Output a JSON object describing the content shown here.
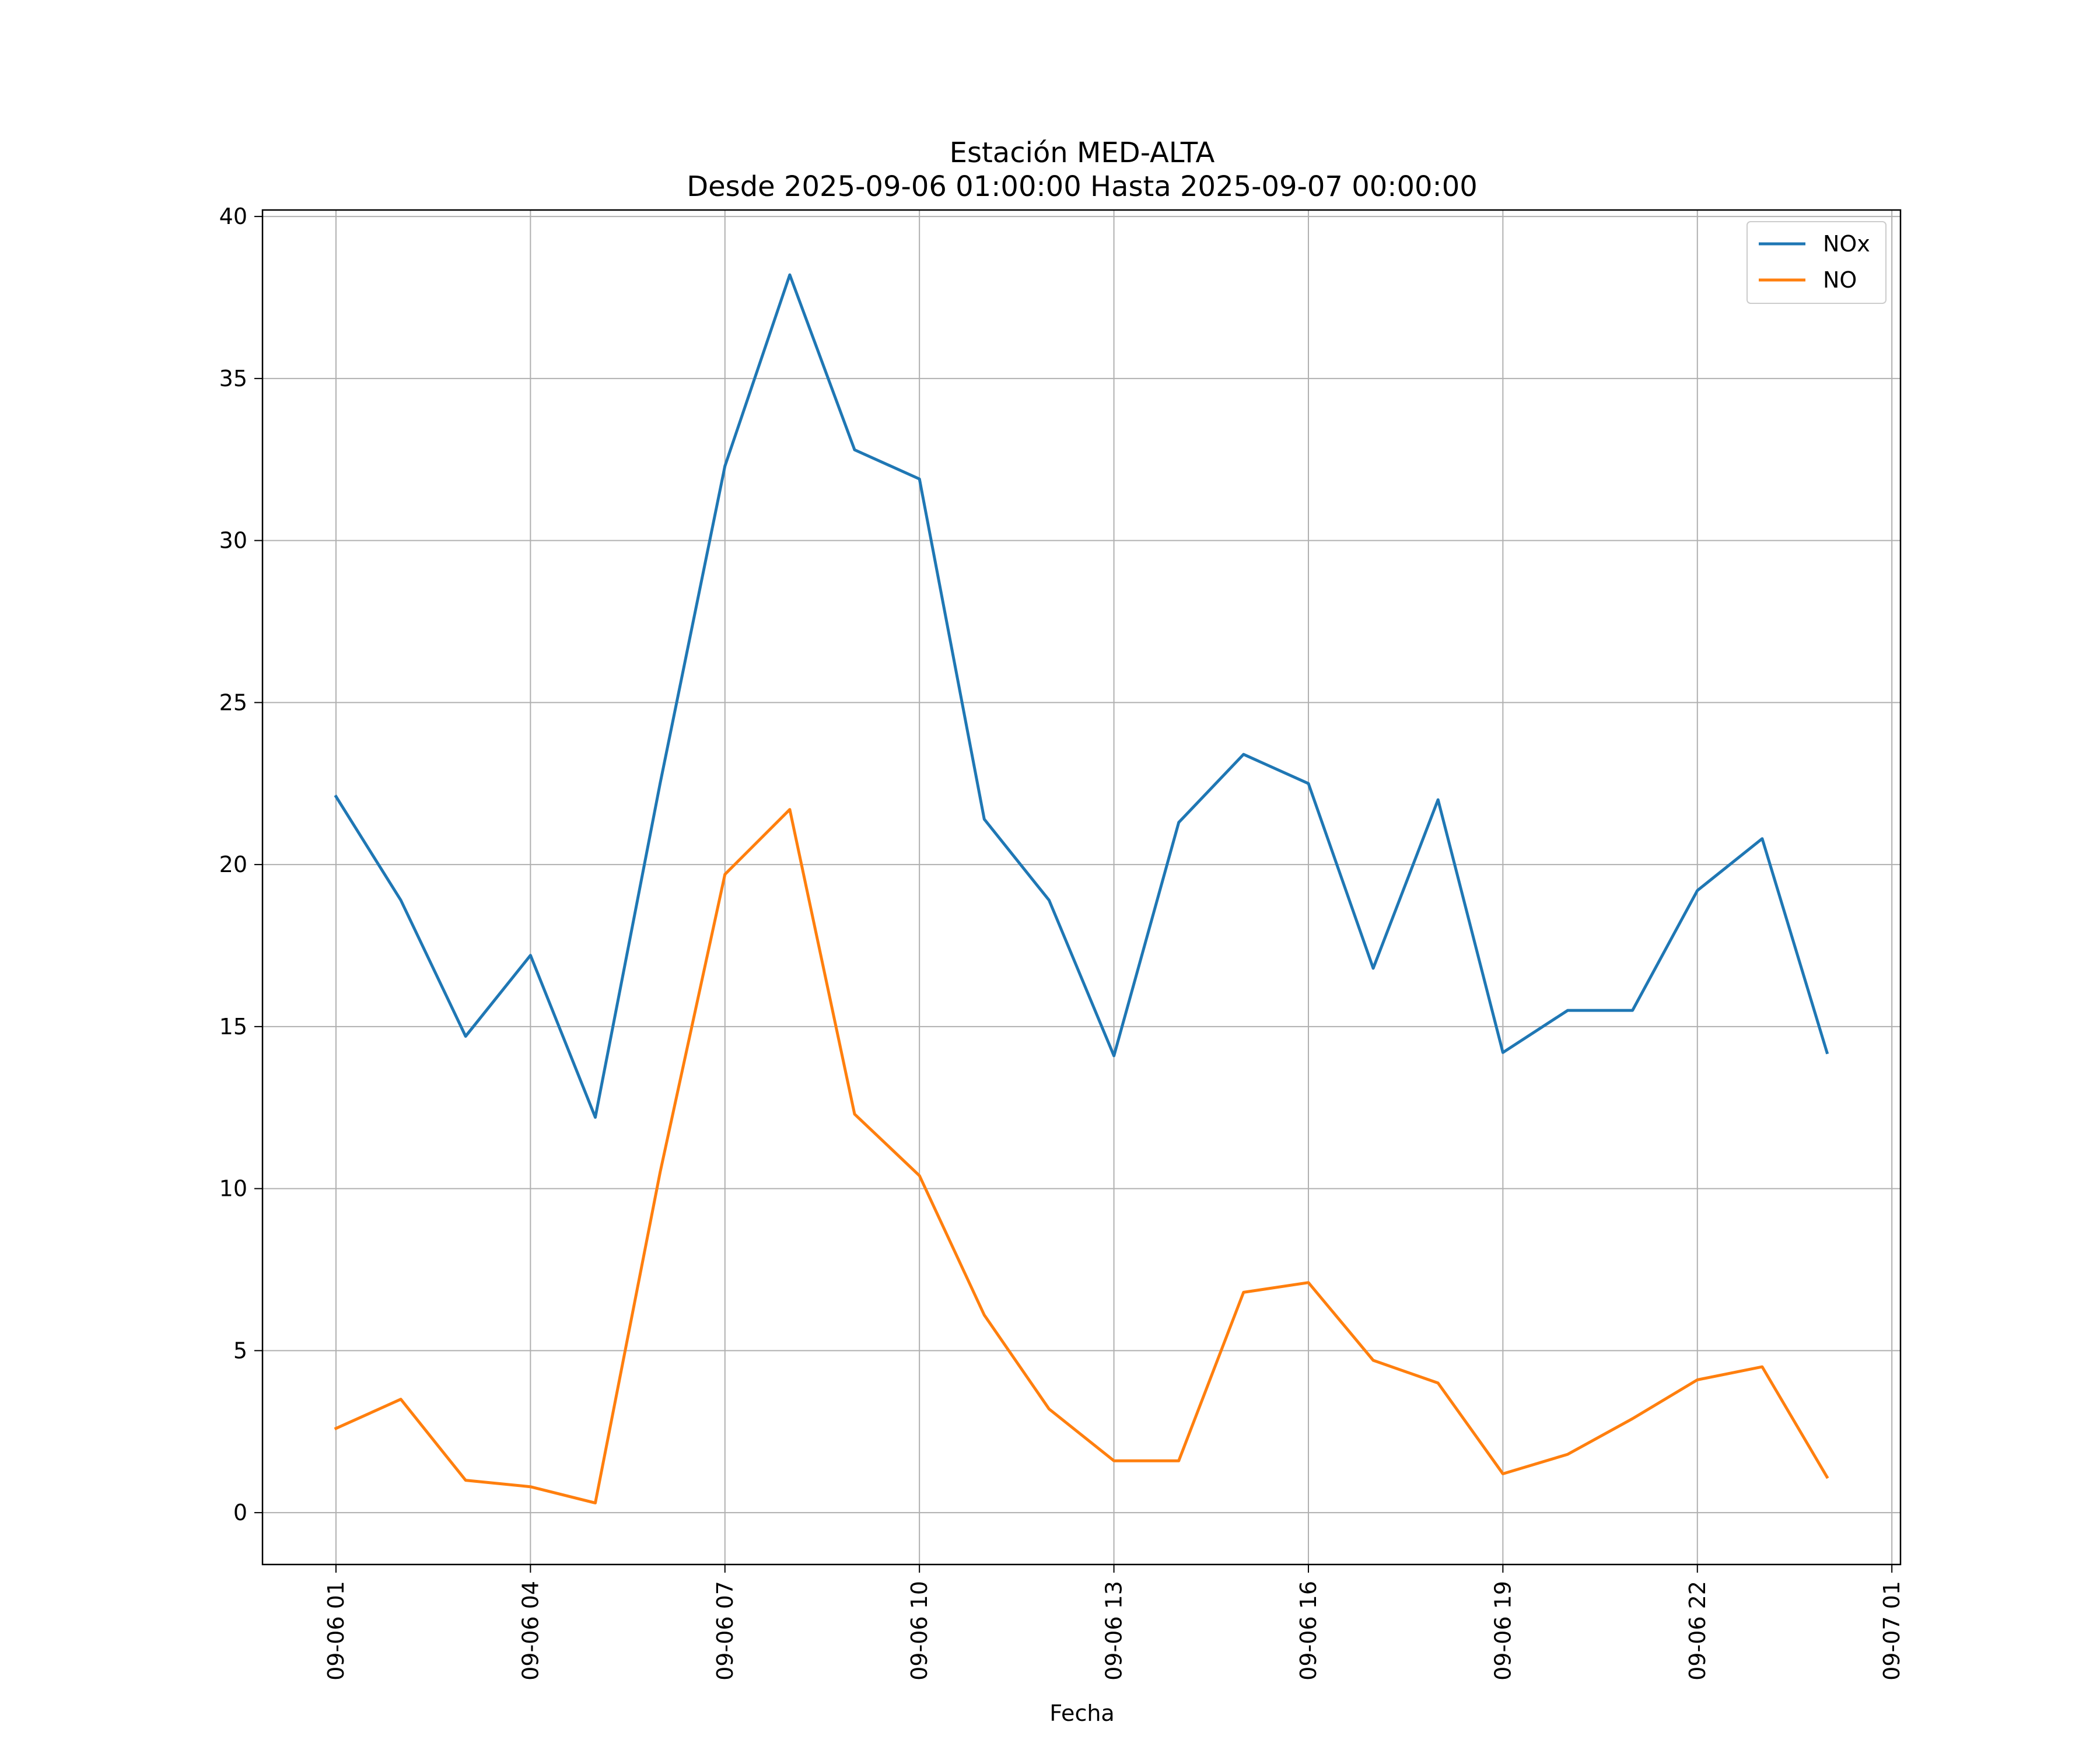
{
  "chart_data": {
    "type": "line",
    "title": "Estación MED-ALTA",
    "subtitle": "Desde 2025-09-06 01:00:00 Hasta 2025-09-07 00:00:00",
    "xlabel": "Fecha",
    "ylabel": "",
    "xlim": [
      "2025-09-05 23:52",
      "2025-09-07 01:08"
    ],
    "ylim": [
      -1.6,
      40.2
    ],
    "grid": true,
    "legend_position": "top-right",
    "x_ticks": [
      {
        "value": "2025-09-06 01:00",
        "label": "09-06 01"
      },
      {
        "value": "2025-09-06 04:00",
        "label": "09-06 04"
      },
      {
        "value": "2025-09-06 07:00",
        "label": "09-06 07"
      },
      {
        "value": "2025-09-06 10:00",
        "label": "09-06 10"
      },
      {
        "value": "2025-09-06 13:00",
        "label": "09-06 13"
      },
      {
        "value": "2025-09-06 16:00",
        "label": "09-06 16"
      },
      {
        "value": "2025-09-06 19:00",
        "label": "09-06 19"
      },
      {
        "value": "2025-09-06 22:00",
        "label": "09-06 22"
      },
      {
        "value": "2025-09-07 01:00",
        "label": "09-07 01"
      }
    ],
    "y_ticks": [
      0,
      5,
      10,
      15,
      20,
      25,
      30,
      35,
      40
    ],
    "x": [
      "2025-09-06 01:00",
      "2025-09-06 02:00",
      "2025-09-06 03:00",
      "2025-09-06 04:00",
      "2025-09-06 05:00",
      "2025-09-06 06:00",
      "2025-09-06 07:00",
      "2025-09-06 08:00",
      "2025-09-06 09:00",
      "2025-09-06 10:00",
      "2025-09-06 11:00",
      "2025-09-06 12:00",
      "2025-09-06 13:00",
      "2025-09-06 14:00",
      "2025-09-06 15:00",
      "2025-09-06 16:00",
      "2025-09-06 17:00",
      "2025-09-06 18:00",
      "2025-09-06 19:00",
      "2025-09-06 20:00",
      "2025-09-06 21:00",
      "2025-09-06 22:00",
      "2025-09-06 23:00",
      "2025-09-07 00:00"
    ],
    "series": [
      {
        "name": "NOx",
        "color": "#1f77b4",
        "values": [
          22.1,
          18.9,
          14.7,
          17.2,
          12.2,
          22.5,
          32.3,
          38.2,
          32.8,
          31.9,
          21.4,
          18.9,
          14.1,
          21.3,
          23.4,
          22.5,
          16.8,
          22.0,
          14.2,
          15.5,
          15.5,
          19.2,
          20.8,
          14.2
        ]
      },
      {
        "name": "NO",
        "color": "#ff7f0e",
        "values": [
          2.6,
          3.5,
          1.0,
          0.8,
          0.3,
          10.5,
          19.7,
          21.7,
          12.3,
          10.4,
          6.1,
          3.2,
          1.6,
          1.6,
          6.8,
          7.1,
          4.7,
          4.0,
          1.2,
          1.8,
          2.9,
          4.1,
          4.5,
          1.1
        ]
      }
    ]
  }
}
